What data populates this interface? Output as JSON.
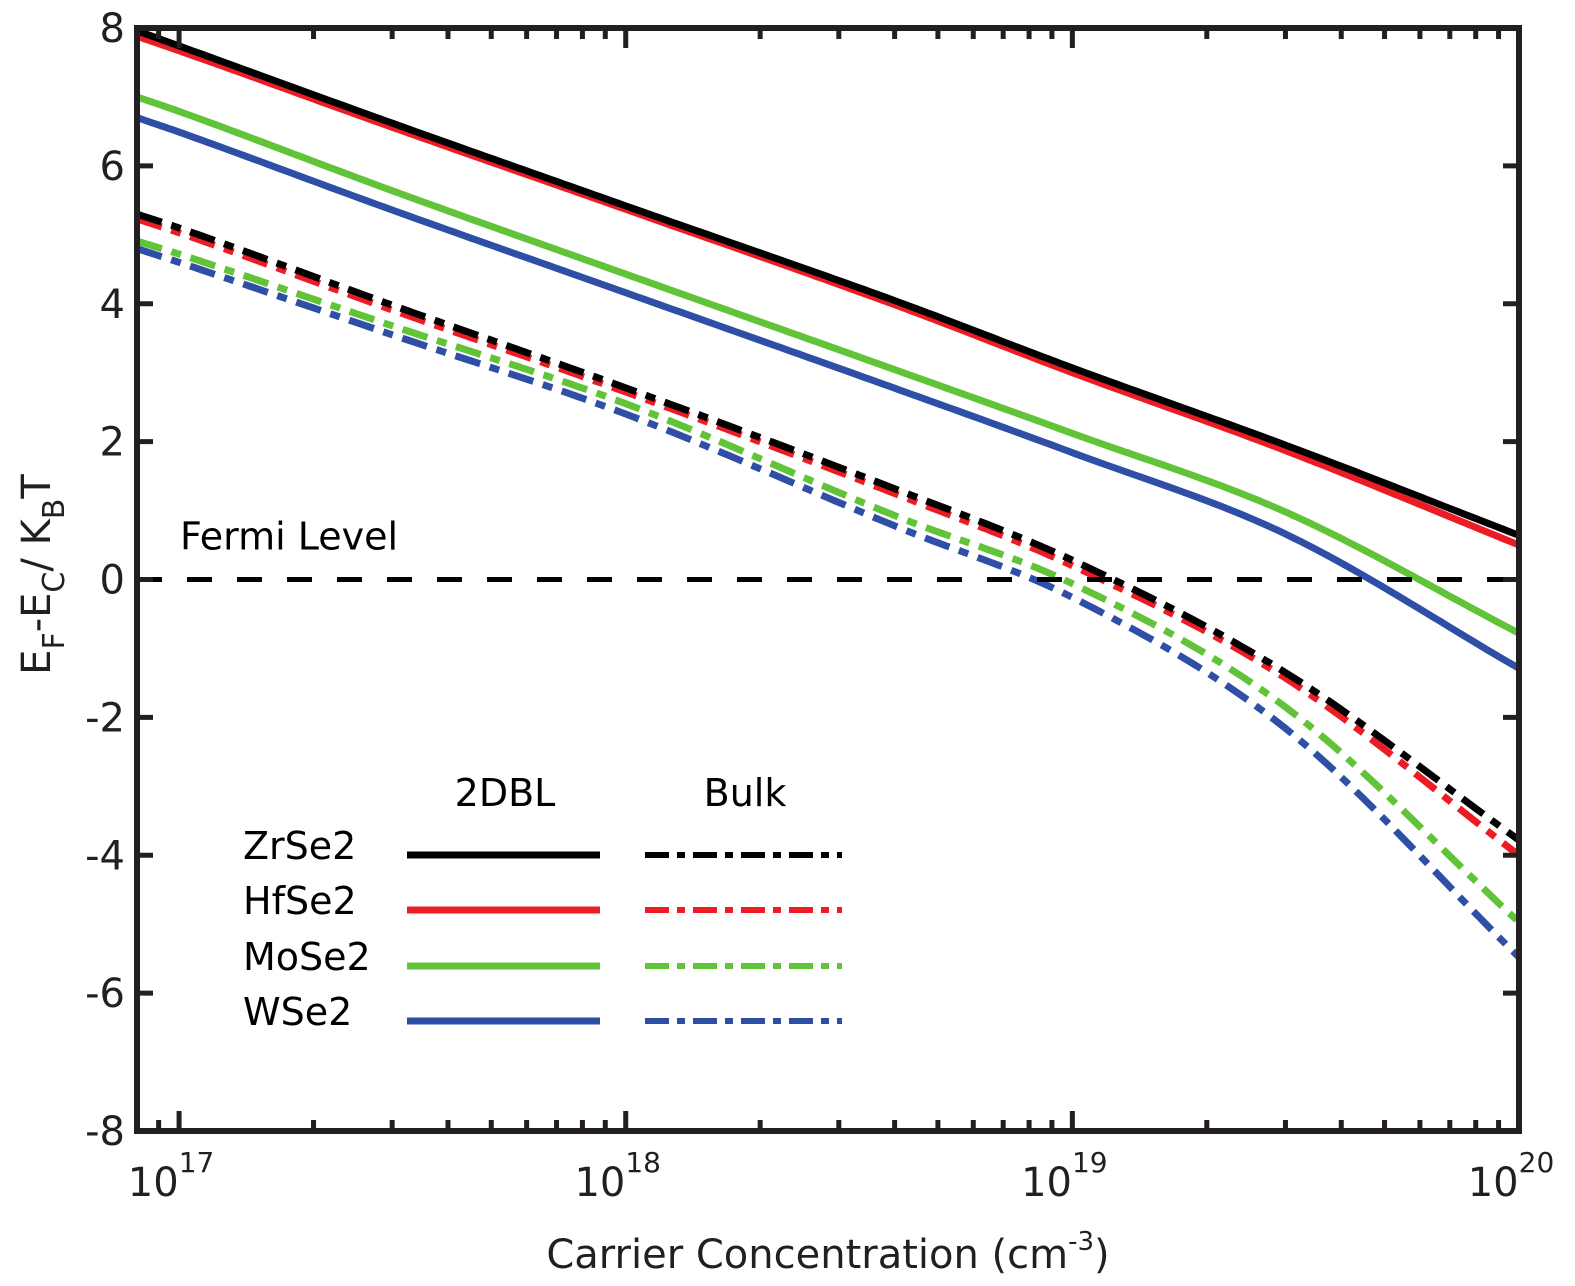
{
  "chart_data": {
    "type": "line",
    "title": "",
    "xlabel": "Carrier Concentration (cm",
    "xlabel_sup": "-3",
    "xlabel_close": ")",
    "ylabel_parts": [
      {
        "t": "E",
        "s": "normal"
      },
      {
        "t": "F",
        "s": "sub"
      },
      {
        "t": "-E",
        "s": "normal"
      },
      {
        "t": "C",
        "s": "sub"
      },
      {
        "t": "/ K",
        "s": "normal"
      },
      {
        "t": "B",
        "s": "sub"
      },
      {
        "t": "T",
        "s": "normal"
      }
    ],
    "xscale": "log",
    "xlim": [
      8.05e+16,
      1e+20
    ],
    "ylim": [
      -8,
      8
    ],
    "grid": false,
    "x_ticks": [
      {
        "base": "10",
        "exp": "17",
        "value": 1e+17
      },
      {
        "base": "10",
        "exp": "18",
        "value": 1e+18
      },
      {
        "base": "10",
        "exp": "19",
        "value": 1e+19
      },
      {
        "base": "10",
        "exp": "20",
        "value": 1e+20
      }
    ],
    "y_ticks": [
      {
        "label": "-8",
        "value": -8
      },
      {
        "label": "-6",
        "value": -6
      },
      {
        "label": "-4",
        "value": -4
      },
      {
        "label": "-2",
        "value": -2
      },
      {
        "label": "0",
        "value": 0
      },
      {
        "label": "2",
        "value": 2
      },
      {
        "label": "4",
        "value": 4
      },
      {
        "label": "6",
        "value": 6
      },
      {
        "label": "8",
        "value": 8
      }
    ],
    "reference_line": {
      "y": 0,
      "label": "Fermi Level",
      "style": "dashed",
      "color": "#000000"
    },
    "x": [
      8.05e+16,
      1e+17,
      3e+17,
      1e+18,
      4.1e+18,
      1e+19,
      3e+19,
      1e+20
    ],
    "series": [
      {
        "name": "ZrSe2 2DBL",
        "material": "ZrSe2",
        "type": "2DBL",
        "style": "solid",
        "color": "#000000",
        "values": [
          7.96,
          7.74,
          6.62,
          5.42,
          4.02,
          3.07,
          1.95,
          0.64
        ]
      },
      {
        "name": "HfSe2 2DBL",
        "material": "HfSe2",
        "type": "2DBL",
        "style": "solid",
        "color": "#ed1c24",
        "values": [
          7.88,
          7.67,
          6.56,
          5.37,
          3.96,
          3.0,
          1.87,
          0.5
        ]
      },
      {
        "name": "MoSe2 2DBL",
        "material": "MoSe2",
        "type": "2DBL",
        "style": "solid",
        "color": "#61c337",
        "values": [
          7.0,
          6.79,
          5.64,
          4.43,
          3.02,
          2.12,
          0.98,
          -0.78
        ]
      },
      {
        "name": "WSe2 2DBL",
        "material": "WSe2",
        "type": "2DBL",
        "style": "solid",
        "color": "#2e4fa5",
        "values": [
          6.7,
          6.49,
          5.36,
          4.16,
          2.75,
          1.84,
          0.66,
          -1.29
        ]
      },
      {
        "name": "ZrSe2 Bulk",
        "material": "ZrSe2",
        "type": "Bulk",
        "style": "dashdot",
        "color": "#000000",
        "values": [
          5.3,
          5.1,
          3.98,
          2.78,
          1.29,
          0.28,
          -1.35,
          -3.78
        ]
      },
      {
        "name": "HfSe2 Bulk",
        "material": "HfSe2",
        "type": "Bulk",
        "style": "dashdot",
        "color": "#ed1c24",
        "values": [
          5.23,
          5.03,
          3.91,
          2.72,
          1.22,
          0.2,
          -1.43,
          -4.0
        ]
      },
      {
        "name": "MoSe2 Bulk",
        "material": "MoSe2",
        "type": "Bulk",
        "style": "dashdot",
        "color": "#61c337",
        "values": [
          4.91,
          4.72,
          3.68,
          2.55,
          0.9,
          -0.06,
          -1.85,
          -4.97
        ]
      },
      {
        "name": "WSe2 Bulk",
        "material": "WSe2",
        "type": "Bulk",
        "style": "dashdot",
        "color": "#2e4fa5",
        "values": [
          4.8,
          4.6,
          3.55,
          2.4,
          0.75,
          -0.26,
          -2.16,
          -5.48
        ]
      }
    ],
    "legend": {
      "placement": "lower-left",
      "column_headers": [
        "2DBL",
        "Bulk"
      ],
      "rows": [
        {
          "label": "ZrSe2",
          "color": "#000000"
        },
        {
          "label": "HfSe2",
          "color": "#ed1c24"
        },
        {
          "label": "MoSe2",
          "color": "#61c337"
        },
        {
          "label": "WSe2",
          "color": "#2e4fa5"
        }
      ]
    }
  }
}
